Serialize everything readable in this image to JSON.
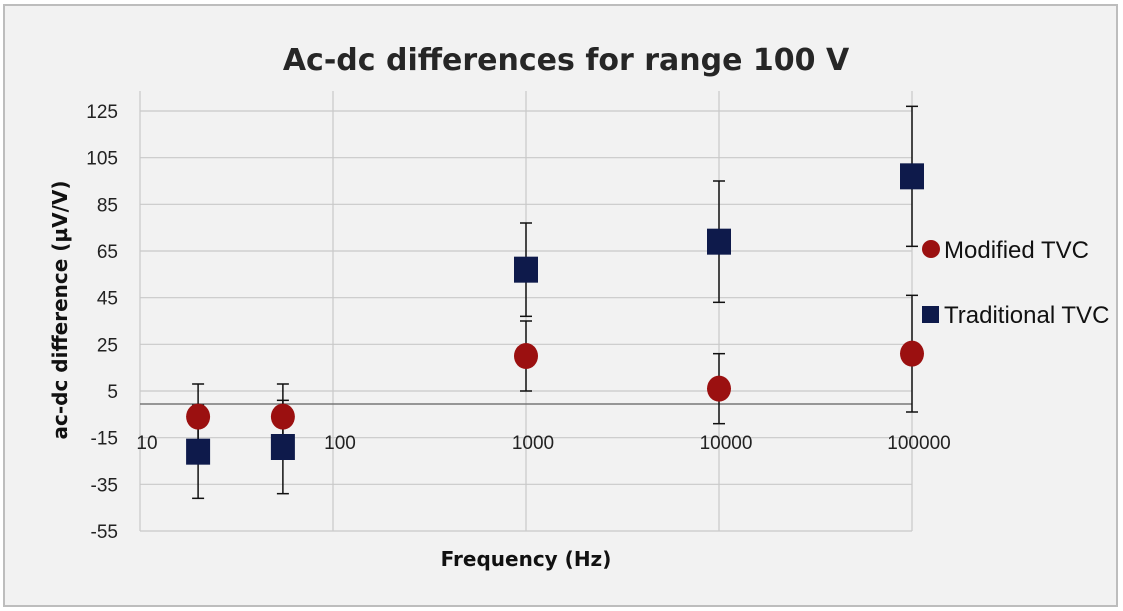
{
  "chart_data": {
    "type": "scatter",
    "title": "Ac-dc differences for range 100 V",
    "xlabel": "Frequency (Hz)",
    "ylabel": "ac-dc difference (µV/V)",
    "x_scale": "log",
    "xlim": [
      10,
      100000
    ],
    "ylim": [
      -55,
      125
    ],
    "x_tick_labels": [
      "10",
      "100",
      "1000",
      "10000",
      "100000"
    ],
    "x_tick_values": [
      10,
      100,
      1000,
      10000,
      100000
    ],
    "y_ticks": [
      125,
      105,
      85,
      65,
      45,
      25,
      5,
      -15,
      -35,
      -55
    ],
    "grid": true,
    "legend_position": "right",
    "series": [
      {
        "name": "Modified TVC",
        "marker": "circle",
        "color": "#9b1010",
        "points": [
          {
            "x": 20,
            "y": -6,
            "err": 14
          },
          {
            "x": 55,
            "y": -6,
            "err": 14
          },
          {
            "x": 1000,
            "y": 20,
            "err": 15
          },
          {
            "x": 10000,
            "y": 6,
            "err": 15
          },
          {
            "x": 100000,
            "y": 21,
            "err": 25
          }
        ]
      },
      {
        "name": "Traditional TVC",
        "marker": "square",
        "color": "#0e1a4b",
        "points": [
          {
            "x": 20,
            "y": -21,
            "err": 20
          },
          {
            "x": 55,
            "y": -19,
            "err": 20
          },
          {
            "x": 1000,
            "y": 57,
            "err": 20
          },
          {
            "x": 10000,
            "y": 69,
            "err": 26
          },
          {
            "x": 100000,
            "y": 97,
            "err": 30
          }
        ]
      }
    ]
  }
}
